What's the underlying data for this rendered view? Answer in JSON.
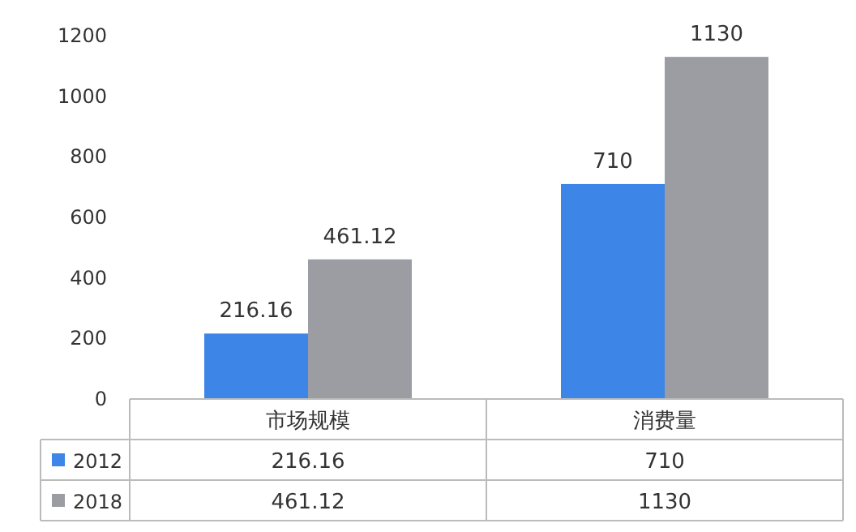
{
  "chart_data": {
    "type": "bar",
    "categories": [
      "市场规模",
      "消费量"
    ],
    "series": [
      {
        "name": "2012",
        "color": "#3d85e6",
        "values": [
          216.16,
          710
        ],
        "value_labels": [
          "216.16",
          "710"
        ]
      },
      {
        "name": "2018",
        "color": "#9b9da2",
        "values": [
          461.12,
          1130
        ],
        "value_labels": [
          "461.12",
          "1130"
        ]
      }
    ],
    "ylim": [
      0,
      1200
    ],
    "yticks": [
      0,
      200,
      400,
      600,
      800,
      1000,
      1200
    ],
    "data_labels": true,
    "legend": "bottom",
    "grid": false,
    "annotations": [
      "216.16",
      "710",
      "461.12",
      "1130"
    ]
  }
}
